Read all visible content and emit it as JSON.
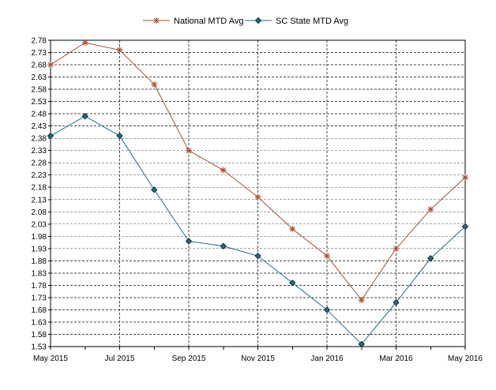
{
  "chart_data": {
    "type": "line",
    "title": "",
    "xlabel": "",
    "ylabel": "",
    "categories": [
      "May 2015",
      "Jun 2015",
      "Jul 2015",
      "Aug 2015",
      "Sep 2015",
      "Oct 2015",
      "Nov 2015",
      "Dec 2015",
      "Jan 2016",
      "Feb 2016",
      "Mar 2016",
      "Apr 2016",
      "May 2016"
    ],
    "x_tick_labels": [
      "May 2015",
      "Jul 2015",
      "Sep 2015",
      "Nov 2015",
      "Jan 2016",
      "Mar 2016",
      "May 2016"
    ],
    "x_tick_indices": [
      0,
      2,
      4,
      6,
      8,
      10,
      12
    ],
    "y_ticks": [
      "2.78",
      "2.73",
      "2.68",
      "2.63",
      "2.58",
      "2.53",
      "2.48",
      "2.43",
      "2.38",
      "2.33",
      "2.28",
      "2.23",
      "2.18",
      "2.13",
      "2.08",
      "2.03",
      "1.98",
      "1.93",
      "1.88",
      "1.83",
      "1.78",
      "1.73",
      "1.68",
      "1.63",
      "1.58",
      "1.53"
    ],
    "ylim": [
      1.53,
      2.78
    ],
    "grid": true,
    "legend_position": "top-center",
    "series": [
      {
        "name": "National MTD Avg",
        "color": "#A0522D",
        "marker": "asterisk",
        "values": [
          2.68,
          2.77,
          2.74,
          2.6,
          2.33,
          2.25,
          2.14,
          2.01,
          1.9,
          1.72,
          1.93,
          2.09,
          2.22
        ]
      },
      {
        "name": "SC State MTD Avg",
        "color": "#1F6E8C",
        "marker": "diamond",
        "values": [
          2.39,
          2.47,
          2.39,
          2.17,
          1.96,
          1.94,
          1.9,
          1.79,
          1.68,
          1.54,
          1.71,
          1.89,
          2.02
        ]
      }
    ]
  }
}
